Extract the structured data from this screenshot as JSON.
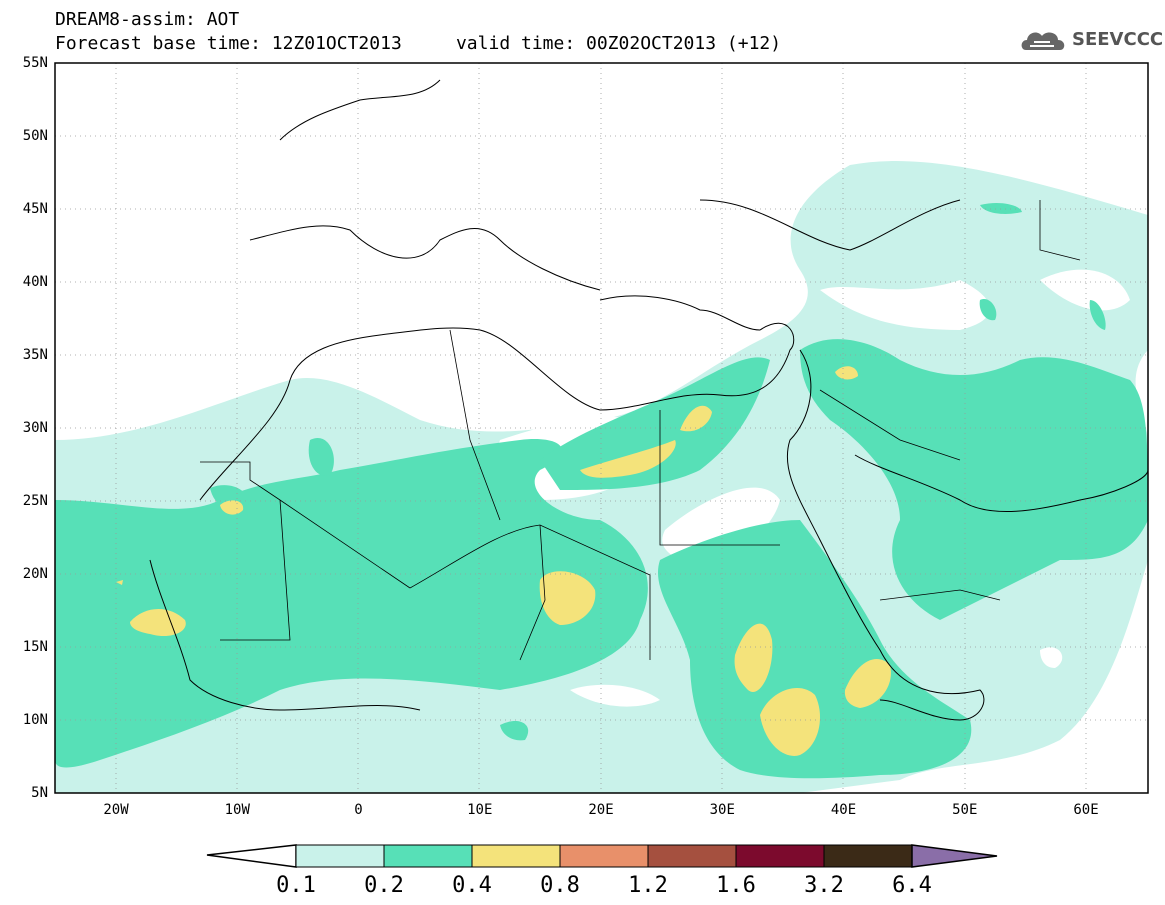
{
  "title": {
    "line1": "DREAM8-assim: AOT",
    "line2": "Forecast base time: 12Z01OCT2013     valid time: 00Z02OCT2013 (+12)"
  },
  "logo": {
    "text": "SEEVCCC",
    "icon": "cloud-logo-icon"
  },
  "map": {
    "lat_labels": [
      "55N",
      "50N",
      "45N",
      "40N",
      "35N",
      "30N",
      "25N",
      "20N",
      "15N",
      "10N",
      "5N"
    ],
    "lon_labels": [
      "20W",
      "10W",
      "0",
      "10E",
      "20E",
      "30E",
      "40E",
      "50E",
      "60E"
    ],
    "lat_range": [
      5,
      55
    ],
    "lon_range": [
      -25,
      65
    ],
    "grid": "dotted"
  },
  "colorbar": {
    "levels": [
      "0.1",
      "0.2",
      "0.4",
      "0.8",
      "1.2",
      "1.6",
      "3.2",
      "6.4"
    ],
    "colors": [
      "#c9f2ea",
      "#57e0b7",
      "#f4e37b",
      "#e8906a",
      "#a5503f",
      "#7c0a2d",
      "#3b2a17",
      "#8a6ea8"
    ]
  },
  "field_colors": {
    "c1": "#c9f2ea",
    "c2": "#57e0b7",
    "c3": "#f4e37b"
  }
}
